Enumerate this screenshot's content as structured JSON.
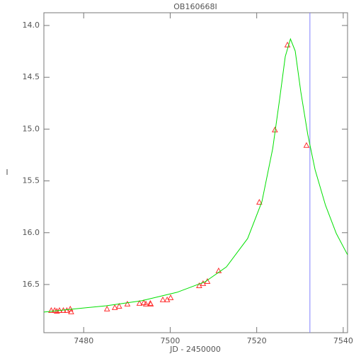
{
  "chart_data": {
    "type": "scatter",
    "title": "OB160668I",
    "x_label": "JD - 2450000",
    "y_label": "I",
    "xlim": [
      7470.8,
      7541.0
    ],
    "xticks": [
      7480,
      7500,
      7520,
      7540
    ],
    "ylim": [
      16.965,
      13.877
    ],
    "yticks": [
      {
        "value": 14.0,
        "label": "14.0"
      },
      14.5,
      {
        "value": 15.0,
        "label": "15.0"
      },
      15.5,
      {
        "value": 16.0,
        "label": "16.0"
      },
      16.5
    ],
    "series": [
      {
        "type": "scatter",
        "color": "#ff3030",
        "x": [
          7472.5,
          7473.3,
          7473.8,
          7474.4,
          7475.3,
          7476.1,
          7476.9,
          7477.1,
          7485.4,
          7487.2,
          7488.2,
          7490.1,
          7492.9,
          7493.9,
          7494.4,
          7495.4,
          7495.5,
          7498.3,
          7499.3,
          7500.1,
          7506.7,
          7507.6,
          7508.6,
          7511.2,
          7520.6,
          7524.2,
          7527.1,
          7531.5
        ],
        "values": [
          16.753,
          16.753,
          16.76,
          16.753,
          16.753,
          16.753,
          16.739,
          16.766,
          16.739,
          16.725,
          16.712,
          16.691,
          16.684,
          16.678,
          16.691,
          16.684,
          16.691,
          16.65,
          16.65,
          16.63,
          16.514,
          16.493,
          16.473,
          16.37,
          15.708,
          15.01,
          14.19,
          15.16
        ]
      },
      {
        "type": "line",
        "color": "#00e000",
        "x": [
          7470.8,
          7477.1,
          7485.2,
          7493.4,
          7501.6,
          7508.1,
          7513.0,
          7517.9,
          7521.2,
          7523.7,
          7525.3,
          7526.6,
          7527.8,
          7528.9,
          7530.2,
          7531.8,
          7533.5,
          7535.9,
          7538.4,
          7541.0
        ],
        "values": [
          16.766,
          16.739,
          16.705,
          16.657,
          16.575,
          16.473,
          16.33,
          16.056,
          15.701,
          15.188,
          14.71,
          14.3,
          14.13,
          14.246,
          14.642,
          15.052,
          15.393,
          15.735,
          16.008,
          16.213
        ]
      }
    ],
    "vline": {
      "x": 7532.3,
      "color": "#8080ff"
    }
  }
}
